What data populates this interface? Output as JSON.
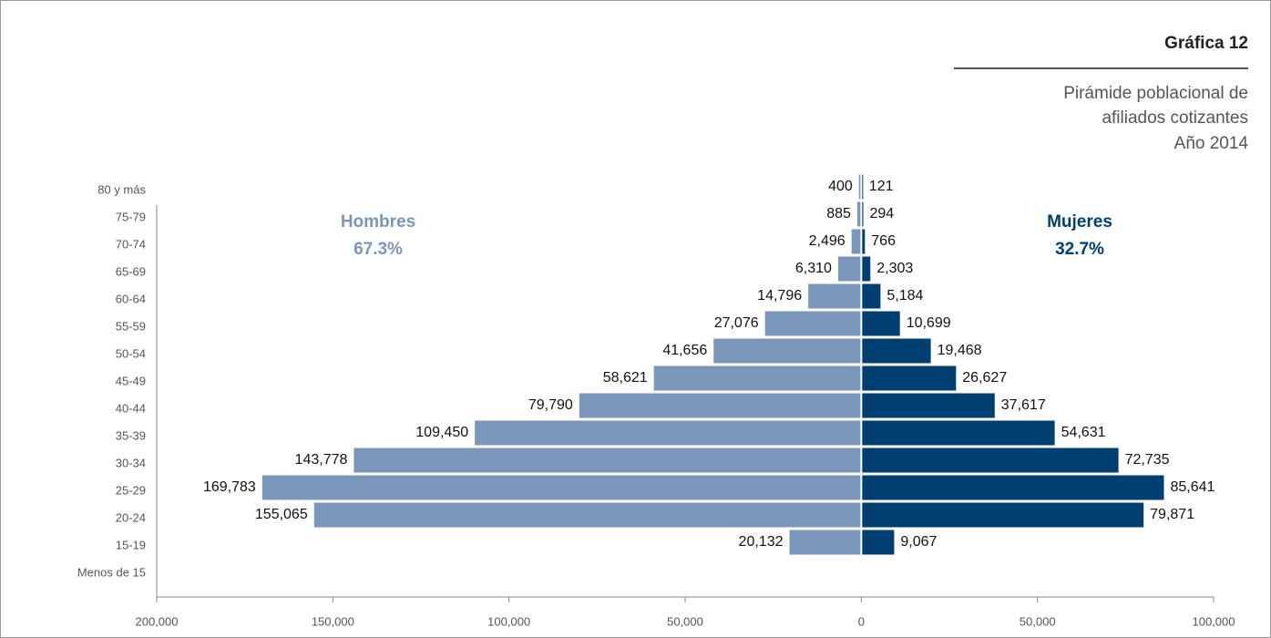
{
  "header": {
    "title": "Gráfica 12",
    "subtitle": [
      "Pirámide poblacional de",
      "afiliados cotizantes",
      "Año 2014"
    ]
  },
  "chart_data": {
    "type": "pyramid",
    "categories": [
      "80 y más",
      "75-79",
      "70-74",
      "65-69",
      "60-64",
      "55-59",
      "50-54",
      "45-49",
      "40-44",
      "35-39",
      "30-34",
      "25-29",
      "20-24",
      "15-19",
      "Menos de 15"
    ],
    "series": [
      {
        "name": "Hombres",
        "side": "left",
        "color": "#7b96bb",
        "share": "67.3%",
        "values": [
          400,
          885,
          2496,
          6310,
          14796,
          27076,
          41656,
          58621,
          79790,
          109450,
          143778,
          169783,
          155065,
          20132,
          null
        ],
        "value_labels": [
          "400",
          "885",
          "2,496",
          "6,310",
          "14,796",
          "27,076",
          "41,656",
          "58,621",
          "79,790",
          "109,450",
          "143,778",
          "169,783",
          "155,065",
          "20,132",
          null
        ]
      },
      {
        "name": "Mujeres",
        "side": "right",
        "color": "#003f72",
        "share": "32.7%",
        "values": [
          121,
          294,
          766,
          2303,
          5184,
          10699,
          19468,
          26627,
          37617,
          54631,
          72735,
          85641,
          79871,
          9067,
          null
        ],
        "value_labels": [
          "121",
          "294",
          "766",
          "2,303",
          "5,184",
          "10,699",
          "19,468",
          "26,627",
          "37,617",
          "54,631",
          "72,735",
          "85,641",
          "79,871",
          "9,067",
          null
        ]
      }
    ],
    "xlim": [
      -200000,
      100000
    ],
    "xticks": [
      {
        "value": -200000,
        "label": "200,000"
      },
      {
        "value": -150000,
        "label": "150,000"
      },
      {
        "value": -100000,
        "label": "100,000"
      },
      {
        "value": -50000,
        "label": "50,000"
      },
      0,
      {
        "value": 50000,
        "label": "50,000"
      },
      {
        "value": 100000,
        "label": "100,000"
      }
    ]
  }
}
